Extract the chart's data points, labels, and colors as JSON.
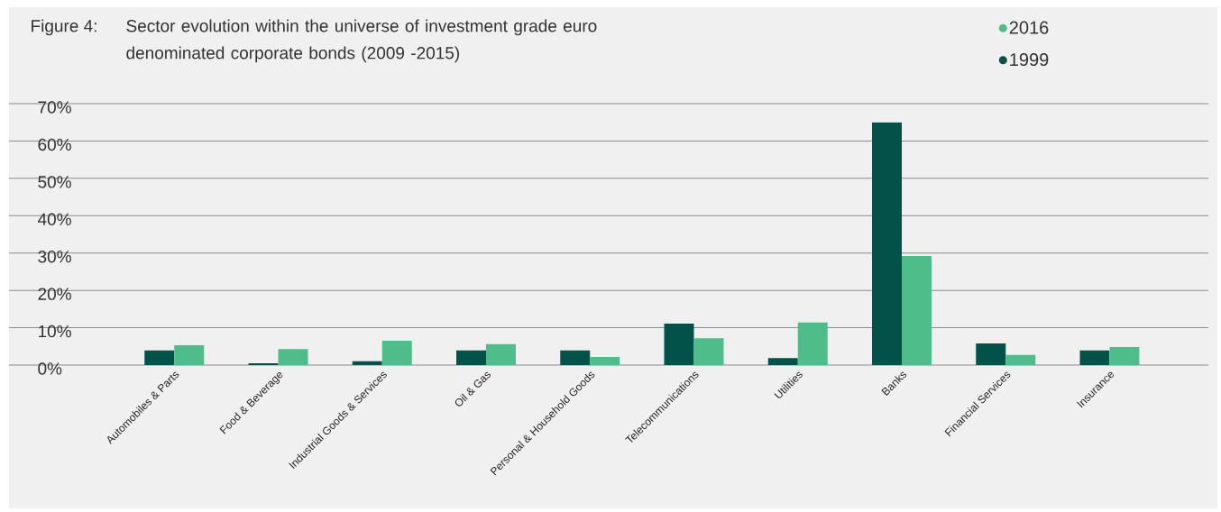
{
  "chart_data": {
    "type": "bar",
    "title": "Sector evolution within the universe of investment grade euro denominated corporate bonds (2009 -2015)",
    "annotations": [
      "Figure 4:"
    ],
    "categories": [
      "Automobiles & Parts",
      "Food & Beverage",
      "Industrial Goods & Services",
      "Oil & Gas",
      "Personal & Household Goods",
      "Telecommunications",
      "Utilities",
      "Banks",
      "Financial Services",
      "Insurance"
    ],
    "series": [
      {
        "name": "1999",
        "color": "#03524a",
        "values": [
          3.9,
          0.5,
          1.0,
          3.9,
          3.9,
          11.1,
          1.9,
          65,
          5.8,
          3.9
        ]
      },
      {
        "name": "2016",
        "color": "#4fbd8a",
        "values": [
          5.3,
          4.3,
          6.5,
          5.6,
          2.2,
          7.2,
          11.4,
          29.2,
          2.7,
          4.8
        ]
      }
    ],
    "ylim": [
      0,
      70
    ],
    "yticks": [
      {
        "value": 0,
        "label": "0%"
      },
      {
        "value": 10,
        "label": "10%"
      },
      {
        "value": 20,
        "label": "20%"
      },
      {
        "value": 30,
        "label": "30%"
      },
      {
        "value": 40,
        "label": "40%"
      },
      {
        "value": 50,
        "label": "50%"
      },
      {
        "value": 60,
        "label": "60%"
      },
      {
        "value": 70,
        "label": "70%"
      }
    ],
    "grid": "y",
    "legend": "top right"
  }
}
